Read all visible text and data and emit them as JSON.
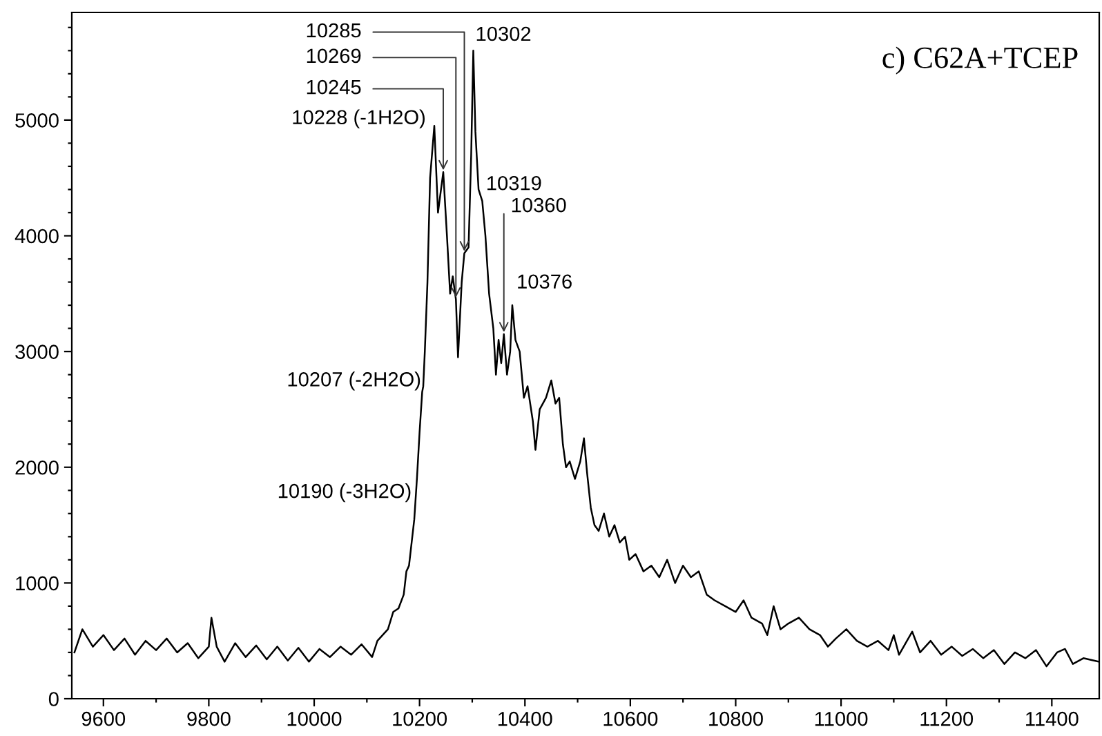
{
  "chart_data": {
    "type": "line",
    "title": "c) C62A+TCEP",
    "x": [
      9545,
      9560,
      9580,
      9600,
      9620,
      9640,
      9660,
      9680,
      9700,
      9720,
      9740,
      9760,
      9780,
      9800,
      9805,
      9815,
      9830,
      9850,
      9870,
      9890,
      9910,
      9930,
      9950,
      9970,
      9990,
      10010,
      10030,
      10050,
      10070,
      10090,
      10110,
      10120,
      10140,
      10150,
      10160,
      10170,
      10175,
      10180,
      10185,
      10190,
      10195,
      10200,
      10205,
      10207,
      10210,
      10215,
      10220,
      10228,
      10235,
      10245,
      10252,
      10258,
      10263,
      10269,
      10273,
      10280,
      10285,
      10293,
      10298,
      10302,
      10306,
      10312,
      10319,
      10325,
      10332,
      10340,
      10345,
      10350,
      10355,
      10360,
      10366,
      10372,
      10376,
      10382,
      10390,
      10398,
      10405,
      10415,
      10420,
      10428,
      10440,
      10450,
      10458,
      10465,
      10472,
      10478,
      10485,
      10495,
      10505,
      10512,
      10518,
      10525,
      10532,
      10540,
      10550,
      10560,
      10570,
      10580,
      10590,
      10598,
      10610,
      10625,
      10640,
      10655,
      10670,
      10685,
      10700,
      10715,
      10730,
      10745,
      10760,
      10780,
      10800,
      10815,
      10830,
      10850,
      10860,
      10872,
      10885,
      10900,
      10920,
      10940,
      10960,
      10975,
      10990,
      11010,
      11030,
      11050,
      11070,
      11090,
      11100,
      11110,
      11135,
      11150,
      11170,
      11190,
      11210,
      11230,
      11250,
      11270,
      11290,
      11310,
      11330,
      11350,
      11370,
      11390,
      11410,
      11425,
      11440,
      11460,
      11480,
      11489
    ],
    "series": [
      {
        "color": "#000000",
        "values": [
          400,
          600,
          450,
          550,
          420,
          520,
          380,
          500,
          420,
          520,
          400,
          480,
          350,
          450,
          700,
          450,
          320,
          480,
          360,
          460,
          340,
          450,
          330,
          440,
          320,
          430,
          360,
          450,
          380,
          470,
          360,
          500,
          600,
          750,
          780,
          900,
          1100,
          1150,
          1350,
          1550,
          1900,
          2300,
          2650,
          2700,
          3000,
          3600,
          4500,
          4950,
          4200,
          4550,
          4000,
          3500,
          3650,
          3450,
          2950,
          3600,
          3850,
          3900,
          4700,
          5600,
          4900,
          4400,
          4300,
          4000,
          3500,
          3200,
          2800,
          3100,
          2900,
          3150,
          2800,
          3000,
          3400,
          3100,
          3000,
          2600,
          2700,
          2400,
          2150,
          2500,
          2600,
          2750,
          2550,
          2600,
          2200,
          2000,
          2050,
          1900,
          2050,
          2250,
          1950,
          1650,
          1500,
          1450,
          1600,
          1400,
          1500,
          1350,
          1400,
          1200,
          1250,
          1100,
          1150,
          1050,
          1200,
          1000,
          1150,
          1050,
          1100,
          900,
          850,
          800,
          750,
          850,
          700,
          650,
          550,
          800,
          600,
          650,
          700,
          600,
          550,
          450,
          520,
          600,
          500,
          450,
          500,
          420,
          550,
          380,
          580,
          400,
          500,
          380,
          450,
          370,
          430,
          350,
          420,
          300,
          400,
          350,
          420,
          280,
          400,
          430,
          300,
          350,
          330,
          320
        ]
      }
    ],
    "xlim": [
      9540,
      11490
    ],
    "xticks": [
      {
        "value": 9600,
        "label": "9600"
      },
      {
        "value": 9700,
        "label": null
      },
      {
        "value": 9800,
        "label": "9800"
      },
      {
        "value": 9900,
        "label": null
      },
      {
        "value": 10000,
        "label": "10000"
      },
      {
        "value": 10100,
        "label": null
      },
      {
        "value": 10200,
        "label": "10200"
      },
      {
        "value": 10300,
        "label": null
      },
      {
        "value": 10400,
        "label": "10400"
      },
      {
        "value": 10500,
        "label": null
      },
      {
        "value": 10600,
        "label": "10600"
      },
      {
        "value": 10700,
        "label": null
      },
      {
        "value": 10800,
        "label": "10800"
      },
      {
        "value": 10900,
        "label": null
      },
      {
        "value": 11000,
        "label": "11000"
      },
      {
        "value": 11100,
        "label": null
      },
      {
        "value": 11200,
        "label": "11200"
      },
      {
        "value": 11300,
        "label": null
      },
      {
        "value": 11400,
        "label": "11400"
      }
    ],
    "ylim": [
      0,
      5930
    ],
    "yticks": [
      0,
      {
        "value": 200,
        "label": null
      },
      {
        "value": 400,
        "label": null
      },
      {
        "value": 600,
        "label": null
      },
      {
        "value": 800,
        "label": null
      },
      1000,
      {
        "value": 1200,
        "label": null
      },
      {
        "value": 1400,
        "label": null
      },
      {
        "value": 1600,
        "label": null
      },
      {
        "value": 1800,
        "label": null
      },
      2000,
      {
        "value": 2200,
        "label": null
      },
      {
        "value": 2400,
        "label": null
      },
      {
        "value": 2600,
        "label": null
      },
      {
        "value": 2800,
        "label": null
      },
      3000,
      {
        "value": 3200,
        "label": null
      },
      {
        "value": 3400,
        "label": null
      },
      {
        "value": 3600,
        "label": null
      },
      {
        "value": 3800,
        "label": null
      },
      4000,
      {
        "value": 4200,
        "label": null
      },
      {
        "value": 4400,
        "label": null
      },
      {
        "value": 4600,
        "label": null
      },
      {
        "value": 4800,
        "label": null
      },
      5000,
      {
        "value": 5200,
        "label": null
      },
      {
        "value": 5400,
        "label": null
      },
      {
        "value": 5600,
        "label": null
      },
      {
        "value": 5800,
        "label": null
      }
    ],
    "grid": false,
    "annotations": [
      {
        "text": "10285",
        "x": 10285,
        "y": 3850
      },
      {
        "text": "10269",
        "x": 10269,
        "y": 3450
      },
      {
        "text": "10245",
        "x": 10245,
        "y": 4550
      },
      {
        "text": "10228 (-1H2O)",
        "x": 10228,
        "y": 4950
      },
      {
        "text": "10302",
        "x": 10302,
        "y": 5600
      },
      {
        "text": "10319",
        "x": 10319,
        "y": 4300
      },
      {
        "text": "10360",
        "x": 10360,
        "y": 3150
      },
      {
        "text": "10376",
        "x": 10376,
        "y": 3400
      },
      {
        "text": "10207 (-2H2O)",
        "x": 10207,
        "y": 2700
      },
      {
        "text": "10190 (-3H2O)",
        "x": 10190,
        "y": 1550
      }
    ]
  }
}
